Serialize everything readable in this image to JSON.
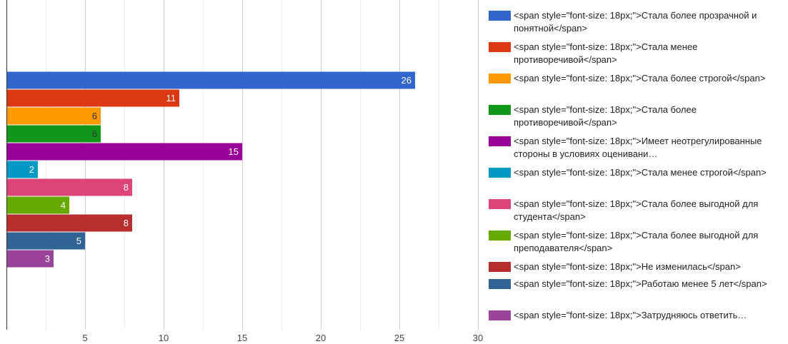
{
  "chart_data": {
    "type": "bar",
    "orientation": "horizontal",
    "grid": true,
    "legend_position": "right",
    "xlim": [
      0,
      30
    ],
    "xticks": [
      "5",
      "10",
      "15",
      "20",
      "25",
      "30"
    ],
    "xtick_values": [
      5,
      10,
      15,
      20,
      25,
      30
    ],
    "series": [
      {
        "name": "<span style=\"font-size: 18px;\">Стала более прозрачной и понятной</span>",
        "value": 26,
        "label": "26",
        "color": "#3366cc"
      },
      {
        "name": "<span style=\"font-size: 18px;\">Стала менее противоречивой</span>",
        "value": 11,
        "label": "11",
        "color": "#dc3912"
      },
      {
        "name": "<span style=\"font-size: 18px;\">Стала более строгой</span>",
        "value": 6,
        "label": "6",
        "color": "#ff9900"
      },
      {
        "name": "<span style=\"font-size: 18px;\">Стала более противоречивой</span>",
        "value": 6,
        "label": "6",
        "color": "#109618"
      },
      {
        "name": "<span style=\"font-size: 18px;\">Имеет неотрегулированные стороны в условиях оценивани…",
        "value": 15,
        "label": "15",
        "color": "#990099"
      },
      {
        "name": "<span style=\"font-size: 18px;\">Стала менее строгой</span>",
        "value": 2,
        "label": "2",
        "color": "#0099c6"
      },
      {
        "name": "<span style=\"font-size: 18px;\">Стала более выгодной для студента</span>",
        "value": 8,
        "label": "8",
        "color": "#dd4477"
      },
      {
        "name": "<span style=\"font-size: 18px;\">Стала более выгодной для преподавателя</span>",
        "value": 4,
        "label": "4",
        "color": "#66aa00"
      },
      {
        "name": "<span style=\"font-size: 18px;\">Не изменилась</span>",
        "value": 8,
        "label": "8",
        "color": "#b82e2e"
      },
      {
        "name": "<span style=\"font-size: 18px;\">Работаю менее 5 лет</span>",
        "value": 5,
        "label": "5",
        "color": "#316395"
      },
      {
        "name": "<span style=\"font-size: 18px;\">Затрудняюсь ответить…",
        "value": 3,
        "label": "3",
        "color": "#994499"
      }
    ]
  }
}
